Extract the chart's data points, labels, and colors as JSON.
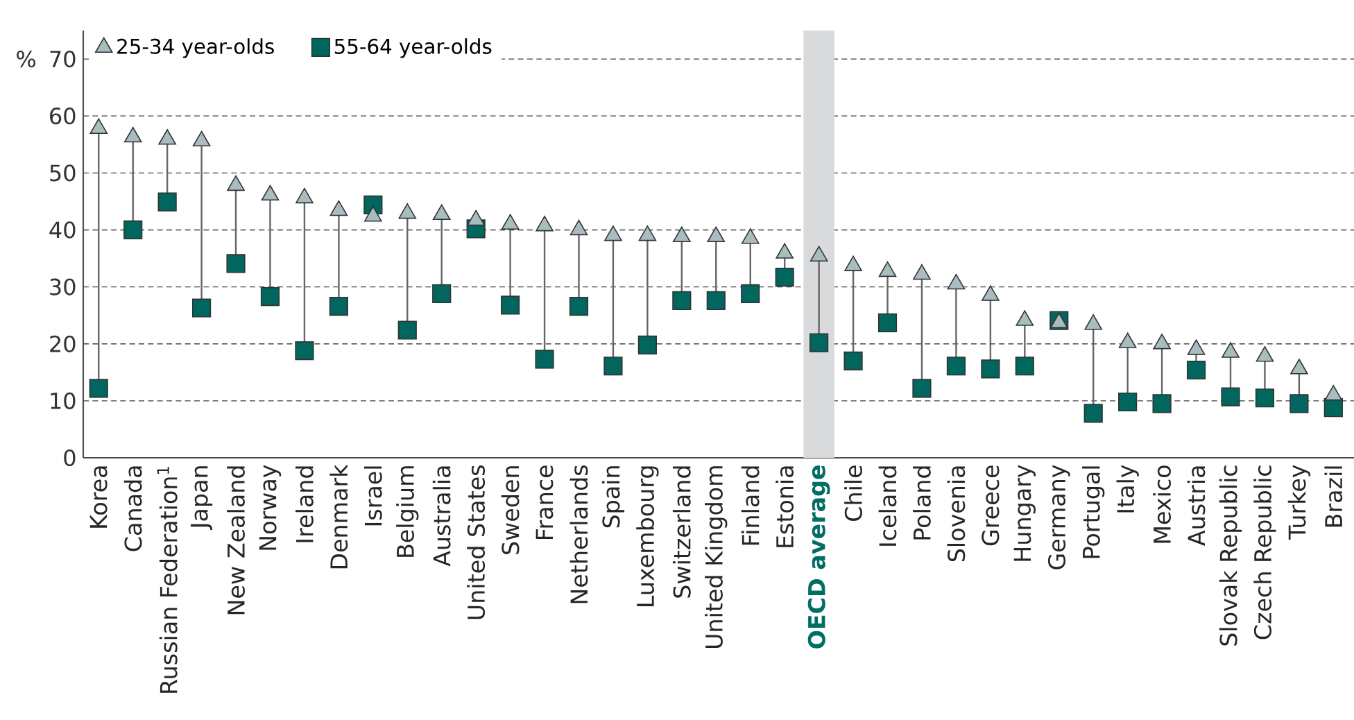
{
  "chart_data": {
    "type": "scatter",
    "categories": [
      "Korea",
      "Canada",
      "Russian Federation$^{1}$",
      "Japan",
      "New Zealand",
      "Norway",
      "Ireland",
      "Denmark",
      "Israel",
      "Belgium",
      "Australia",
      "United States",
      "Sweden",
      "France",
      "Netherlands",
      "Spain",
      "Luxembourg",
      "Switzerland",
      "United Kingdom",
      "Finland",
      "Estonia",
      "OECD average",
      "Chile",
      "Iceland",
      "Poland",
      "Slovenia",
      "Greece",
      "Hungary",
      "Germany",
      "Portugal",
      "Italy",
      "Mexico",
      "Austria",
      "Slovak Republic",
      "Czech Republic",
      "Turkey",
      "Brazil"
    ],
    "series": [
      {
        "name": "25-34 year-olds",
        "color": "#a9bcbf",
        "marker": "triangle",
        "values": [
          57.8,
          56.3,
          55.9,
          55.6,
          47.8,
          46.1,
          45.6,
          43.4,
          42.4,
          42.9,
          42.7,
          41.7,
          41.0,
          40.7,
          40.0,
          39.0,
          39.0,
          38.8,
          38.8,
          38.5,
          35.9,
          35.4,
          33.7,
          32.7,
          32.2,
          30.5,
          28.5,
          24.1,
          23.7,
          23.4,
          20.2,
          20.0,
          19.0,
          18.5,
          17.8,
          15.6,
          11.0
        ]
      },
      {
        "name": "55-64 year-olds",
        "color": "#00665e",
        "marker": "square",
        "values": [
          12.2,
          40.0,
          44.9,
          26.3,
          34.1,
          28.3,
          18.8,
          26.6,
          44.4,
          22.4,
          28.8,
          40.2,
          26.8,
          17.3,
          26.6,
          16.1,
          19.8,
          27.6,
          27.6,
          28.8,
          31.7,
          20.2,
          17.0,
          23.7,
          12.2,
          16.1,
          15.6,
          16.1,
          24.1,
          7.8,
          9.8,
          9.5,
          15.4,
          10.7,
          10.5,
          9.5,
          8.8
        ]
      }
    ],
    "ylabel": "%",
    "ylim": [
      0,
      75
    ],
    "yticks": [
      0,
      10,
      20,
      30,
      40,
      50,
      60,
      70
    ],
    "grid": "y",
    "legend": "top left",
    "bands": [
      {
        "axis": "x",
        "from": "OECD average",
        "to": "OECD average",
        "color": "#d9dadc"
      }
    ]
  }
}
